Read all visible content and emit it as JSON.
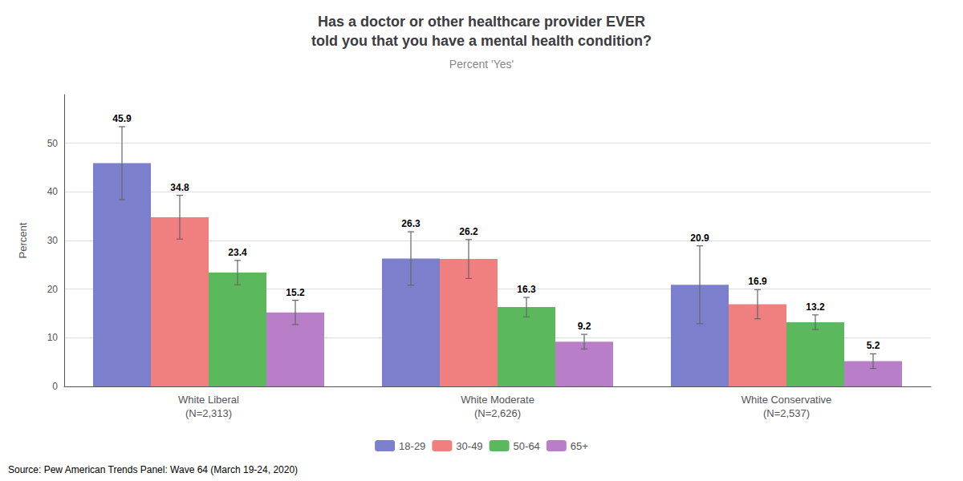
{
  "chart_data": {
    "type": "bar",
    "title": "Has a doctor or other healthcare provider EVER\ntold you that you have a mental health condition?",
    "subtitle": "Percent 'Yes'",
    "source": "Source: Pew American Trends Panel: Wave 64 (March 19-24, 2020)",
    "categories": [
      "White Liberal\n(N=2,313)",
      "White Moderate\n(N=2,626)",
      "White Conservative\n(N=2,537)"
    ],
    "series": [
      {
        "name": "18-29",
        "color": "#7b7fcc",
        "values": [
          45.9,
          26.3,
          20.9
        ],
        "errors": [
          7.5,
          5.5,
          8.0
        ]
      },
      {
        "name": "30-49",
        "color": "#f08080",
        "values": [
          34.8,
          26.2,
          16.9
        ],
        "errors": [
          4.5,
          4.0,
          3.0
        ]
      },
      {
        "name": "50-64",
        "color": "#5cb85c",
        "values": [
          23.4,
          16.3,
          13.2
        ],
        "errors": [
          2.5,
          2.0,
          1.5
        ]
      },
      {
        "name": "65+",
        "color": "#b87fc8",
        "values": [
          15.2,
          9.2,
          5.2
        ],
        "errors": [
          2.5,
          1.5,
          1.5
        ]
      }
    ],
    "ylabel": "Percent",
    "ylim": [
      0,
      60
    ],
    "yticks": [
      0,
      10,
      20,
      30,
      40,
      50
    ],
    "grid": true,
    "legend": "bottom",
    "data_labels": true
  }
}
